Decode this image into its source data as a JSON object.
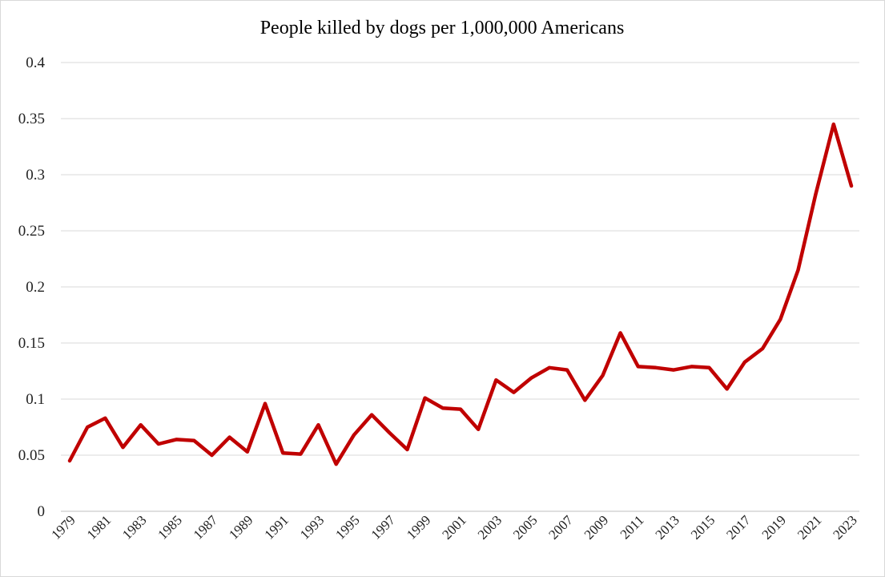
{
  "chart_data": {
    "type": "line",
    "title": "People killed by dogs per 1,000,000 Americans",
    "xlabel": "",
    "ylabel": "",
    "ylim": [
      0,
      0.4
    ],
    "y_ticks": [
      "0",
      "0.05",
      "0.1",
      "0.15",
      "0.2",
      "0.25",
      "0.3",
      "0.35",
      "0.4"
    ],
    "x_tick_labels": [
      "1979",
      "1981",
      "1983",
      "1985",
      "1987",
      "1989",
      "1991",
      "1993",
      "1995",
      "1997",
      "1999",
      "2001",
      "2003",
      "2005",
      "2007",
      "2009",
      "2011",
      "2013",
      "2015",
      "2017",
      "2019",
      "2021",
      "2023"
    ],
    "grid": true,
    "legend": "none",
    "colors": {
      "line": "#c00000"
    },
    "series": [
      {
        "x": [
          1979,
          1980,
          1981,
          1982,
          1983,
          1984,
          1985,
          1986,
          1987,
          1988,
          1989,
          1990,
          1991,
          1992,
          1993,
          1994,
          1995,
          1996,
          1997,
          1998,
          1999,
          2000,
          2001,
          2002,
          2003,
          2004,
          2005,
          2006,
          2007,
          2008,
          2009,
          2010,
          2011,
          2012,
          2013,
          2014,
          2015,
          2016,
          2017,
          2018,
          2019,
          2020,
          2021,
          2022,
          2023
        ],
        "values": [
          0.045,
          0.075,
          0.083,
          0.057,
          0.077,
          0.06,
          0.064,
          0.063,
          0.05,
          0.066,
          0.053,
          0.096,
          0.052,
          0.051,
          0.077,
          0.042,
          0.068,
          0.086,
          0.07,
          0.055,
          0.101,
          0.092,
          0.091,
          0.073,
          0.117,
          0.106,
          0.119,
          0.128,
          0.126,
          0.099,
          0.121,
          0.159,
          0.129,
          0.128,
          0.126,
          0.129,
          0.128,
          0.109,
          0.133,
          0.145,
          0.171,
          0.215,
          0.283,
          0.345,
          0.29
        ]
      }
    ]
  }
}
